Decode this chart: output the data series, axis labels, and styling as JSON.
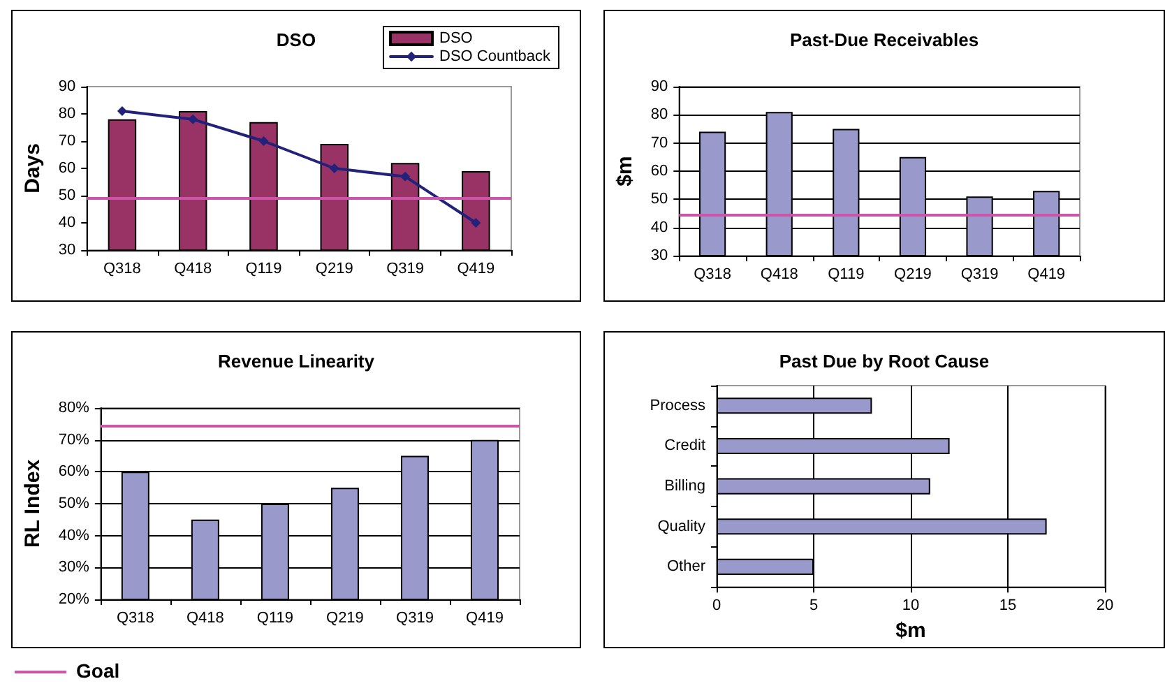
{
  "chart_data": [
    {
      "type": "bar",
      "title": "DSO",
      "categories": [
        "Q318",
        "Q418",
        "Q119",
        "Q219",
        "Q319",
        "Q419"
      ],
      "series": [
        {
          "name": "DSO",
          "color": "#993366",
          "values": [
            78,
            81,
            77,
            69,
            62,
            59
          ]
        },
        {
          "name": "DSO Countback",
          "type": "line",
          "color": "#22227a",
          "values": [
            81,
            78,
            70,
            60,
            57,
            40
          ]
        }
      ],
      "ylabel": "Days",
      "ylim": [
        30,
        90
      ],
      "yticks": [
        30,
        40,
        50,
        60,
        70,
        80,
        90
      ],
      "legend": "top right",
      "marker": "diamond",
      "ref_lines": [
        {
          "axis": "y",
          "value": 49,
          "color": "#cc55aa"
        }
      ]
    },
    {
      "type": "bar",
      "title": "Past-Due Receivables",
      "categories": [
        "Q318",
        "Q418",
        "Q119",
        "Q219",
        "Q319",
        "Q419"
      ],
      "values": [
        74,
        81,
        75,
        65,
        51,
        53
      ],
      "color": "#9999cc",
      "ylabel": "$m",
      "ylim": [
        30,
        90
      ],
      "yticks": [
        30,
        40,
        50,
        60,
        70,
        80,
        90
      ],
      "grid": "y",
      "ref_lines": [
        {
          "axis": "y",
          "value": 44.5,
          "color": "#cc55aa"
        }
      ]
    },
    {
      "type": "bar",
      "title": "Revenue Linearity",
      "categories": [
        "Q318",
        "Q418",
        "Q119",
        "Q219",
        "Q319",
        "Q419"
      ],
      "values": [
        60,
        45,
        50,
        55,
        65,
        70
      ],
      "color": "#9999cc",
      "ylabel": "RL Index",
      "ylim": [
        20,
        80
      ],
      "yticks": [
        {
          "value": 20,
          "label": "20%"
        },
        {
          "value": 30,
          "label": "30%"
        },
        {
          "value": 40,
          "label": "40%"
        },
        {
          "value": 50,
          "label": "50%"
        },
        {
          "value": 60,
          "label": "60%"
        },
        {
          "value": 70,
          "label": "70%"
        },
        {
          "value": 80,
          "label": "80%"
        }
      ],
      "grid": "y",
      "ref_lines": [
        {
          "axis": "y",
          "value": 74.5,
          "color": "#cc55aa",
          "label": "Goal"
        }
      ]
    },
    {
      "type": "bar",
      "orientation": "horizontal",
      "title": "Past Due by Root Cause",
      "categories": [
        "Process",
        "Credit",
        "Billing",
        "Quality",
        "Other"
      ],
      "values": [
        8,
        12,
        11,
        17,
        5
      ],
      "color": "#9999cc",
      "xlabel": "$m",
      "xlim": [
        0,
        20
      ],
      "xticks": [
        0,
        5,
        10,
        15,
        20
      ],
      "grid": "x"
    }
  ]
}
